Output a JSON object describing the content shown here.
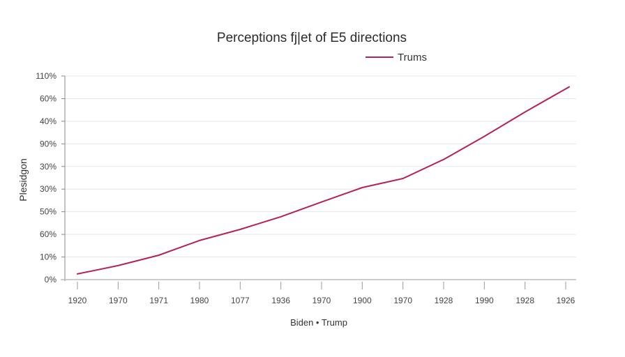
{
  "chart_data": {
    "type": "line",
    "title": "Perceptions fj|et of E5 directions",
    "xlabel": "Biden • Trump",
    "ylabel": "Plesidgon",
    "x_tick_labels": [
      "1920",
      "1970",
      "1971",
      "1980",
      "1077",
      "1936",
      "1970",
      "1900",
      "1970",
      "1928",
      "1990",
      "1928",
      "1926"
    ],
    "y_tick_labels": [
      "0%",
      "10%",
      "60%",
      "50%",
      "30%",
      "30%",
      "90%",
      "40%",
      "60%",
      "110%"
    ],
    "y_axis_note": "Y tick labels are printed non-monotonically; values below are expressed in tick-index units (0 = bottom tick '0%', 9 = top tick '110%').",
    "ylim_index": [
      0,
      9
    ],
    "grid": true,
    "legend": {
      "position": "top-right",
      "entries": [
        "Trums"
      ]
    },
    "series": [
      {
        "name": "Trums",
        "color": "#b5234f",
        "values": [
          0.25,
          0.62,
          1.08,
          1.73,
          2.22,
          2.78,
          3.43,
          4.07,
          4.47,
          5.31,
          6.33,
          7.41,
          8.52
        ]
      }
    ]
  }
}
